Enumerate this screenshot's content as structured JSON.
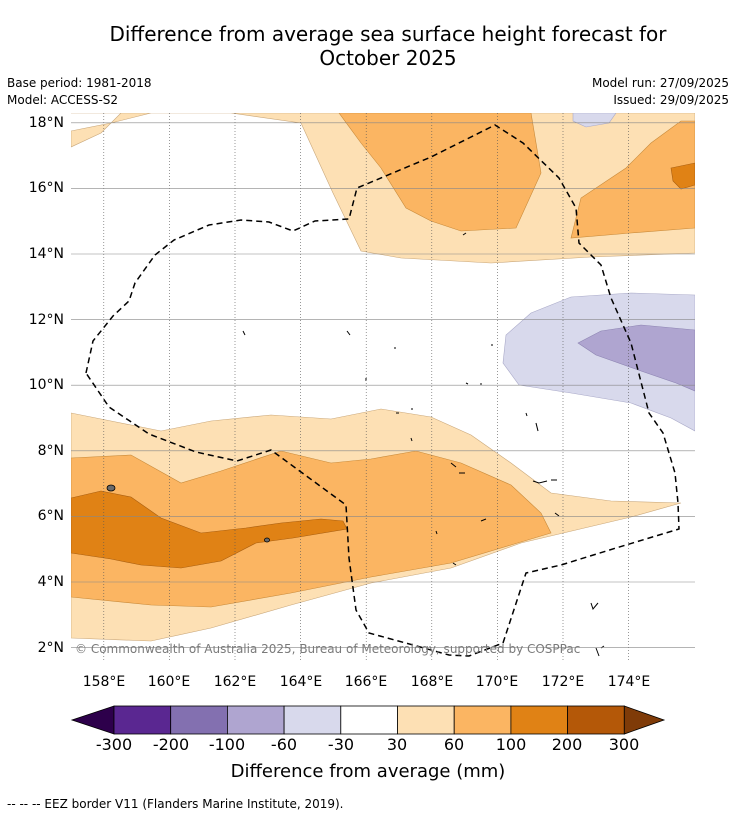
{
  "title_line1": "Difference from average sea surface height forecast for",
  "title_line2": "October 2025",
  "meta": {
    "base_period": "Base period: 1981-2018",
    "model": "Model: ACCESS-S2",
    "model_run": "Model run: 27/09/2025",
    "issued": "Issued: 29/09/2025"
  },
  "map": {
    "lat_labels": [
      "18°N",
      "16°N",
      "14°N",
      "12°N",
      "10°N",
      "8°N",
      "6°N",
      "4°N",
      "2°N"
    ],
    "lon_labels": [
      "158°E",
      "160°E",
      "162°E",
      "164°E",
      "166°E",
      "168°E",
      "170°E",
      "172°E",
      "174°E"
    ],
    "copyright": "© Commonwealth of Australia 2025, Bureau of Meteorology, supported by COSPPac"
  },
  "colorbar": {
    "ticks": [
      "-300",
      "-200",
      "-100",
      "-60",
      "-30",
      "30",
      "60",
      "100",
      "200",
      "300"
    ],
    "colors": [
      "#2d004b",
      "#5a2791",
      "#8370b0",
      "#afa5d0",
      "#d8d9ec",
      "#ffffff",
      "#fde0b4",
      "#fbb562",
      "#e08215",
      "#b45808",
      "#7f3b08"
    ],
    "title": "Difference from average (mm)"
  },
  "legend": {
    "text": "--  --  -- EEZ border V11 (Flanders Marine Institute, 2019)."
  }
}
